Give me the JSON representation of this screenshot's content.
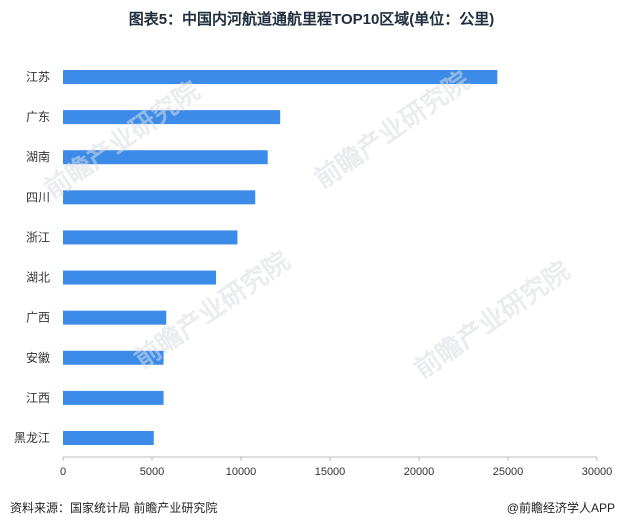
{
  "title": "图表5：中国内河航道通航里程TOP10区域(单位：公里)",
  "footer": {
    "source": "资料来源：国家统计局 前瞻产业研究院",
    "brand": "@前瞻经济学人APP"
  },
  "watermark": "前瞻产业研究院",
  "colors": {
    "bar": "#3d8be8",
    "axis": "#999999",
    "text": "#333333"
  },
  "chart_data": {
    "type": "bar",
    "orientation": "horizontal",
    "categories": [
      "江苏",
      "广东",
      "湖南",
      "四川",
      "浙江",
      "湖北",
      "广西",
      "安徽",
      "江西",
      "黑龙江"
    ],
    "values": [
      24400,
      12200,
      11500,
      10800,
      9800,
      8600,
      5800,
      5650,
      5650,
      5100
    ],
    "xlim": [
      0,
      30000
    ],
    "xticks": [
      "0",
      "5000",
      "10000",
      "15000",
      "20000",
      "25000",
      "30000"
    ],
    "grid": false,
    "legend": "none"
  }
}
